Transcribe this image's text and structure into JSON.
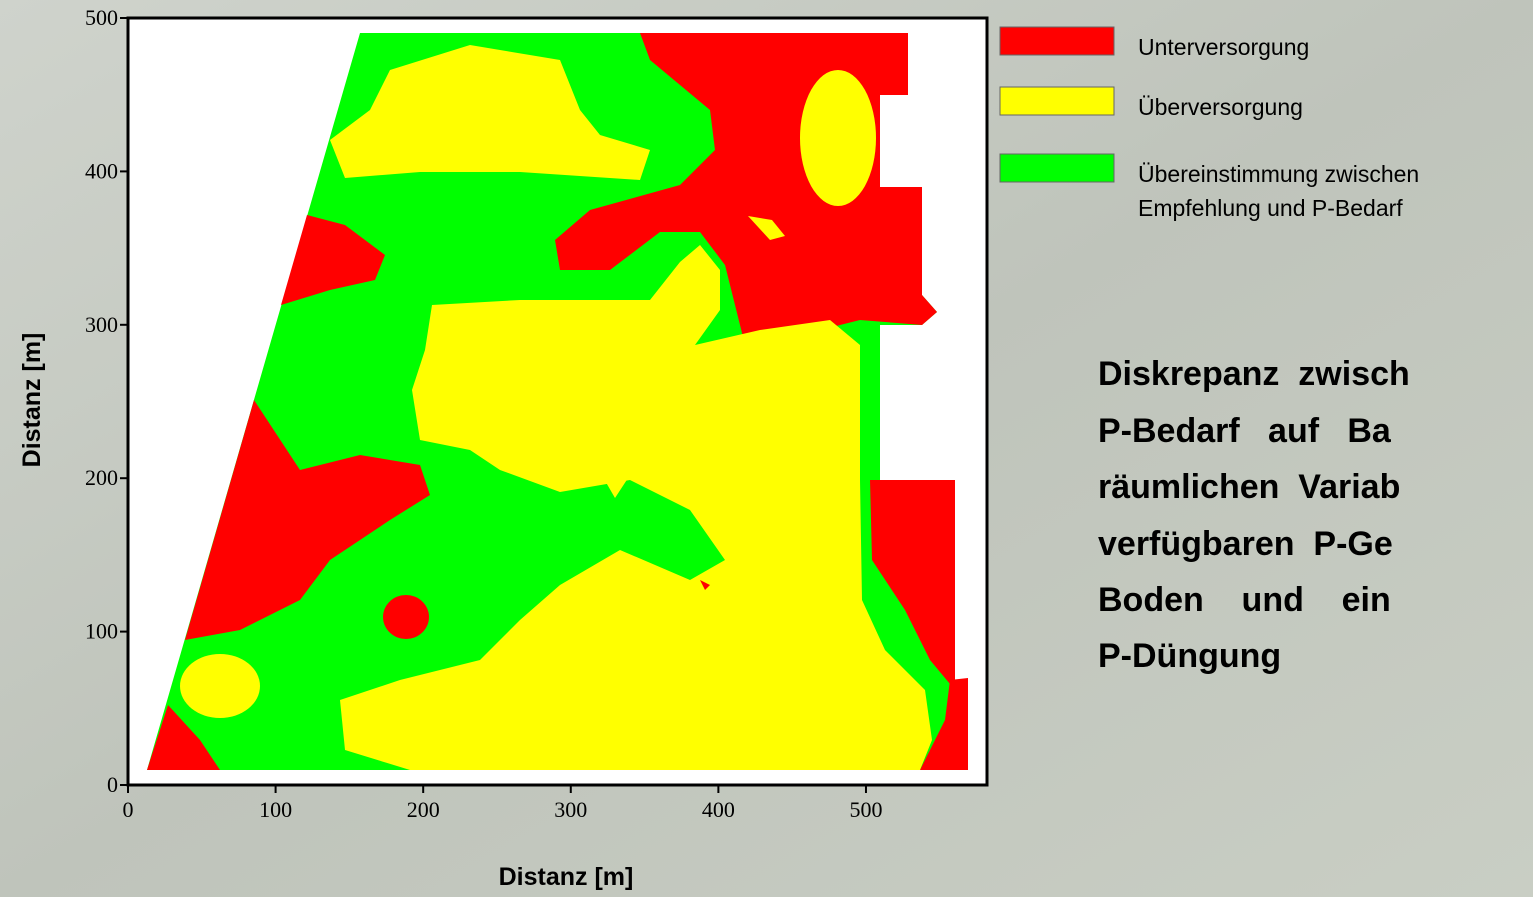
{
  "chart_data": {
    "type": "contour",
    "xlabel": "Distanz [m]",
    "ylabel": "Distanz [m]",
    "xlim": [
      0,
      582
    ],
    "ylim": [
      0,
      500
    ],
    "xticks": [
      0,
      100,
      200,
      300,
      400,
      500
    ],
    "yticks": [
      0,
      100,
      200,
      300,
      400,
      500
    ],
    "legend": [
      {
        "lines": [
          "Unterversorgung"
        ],
        "color": "#ff0000"
      },
      {
        "lines": [
          "Überversorgung"
        ],
        "color": "#ffff00"
      },
      {
        "lines": [
          "Übereinstimmung zwischen",
          "Empfehlung und P-Bedarf"
        ],
        "color": "#00ff00"
      }
    ],
    "caption": [
      "Diskrepanz  zwisch",
      "P-Bedarf   auf   Ba",
      "räumlichen  Variab",
      "verfügbaren  P-Ge",
      "Boden    und    ein",
      "P-Düngung"
    ]
  }
}
